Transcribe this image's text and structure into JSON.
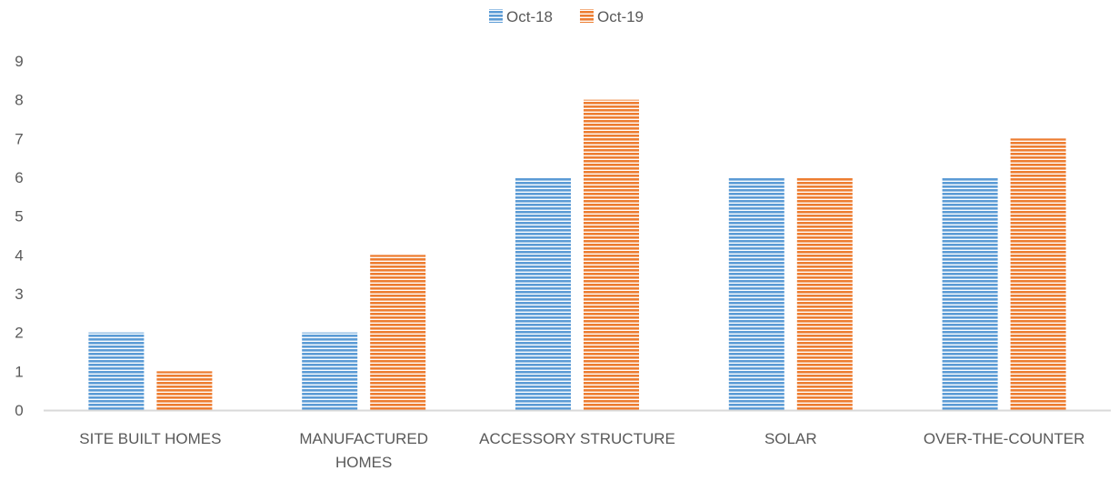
{
  "chart_data": {
    "type": "bar",
    "categories": [
      [
        "SITE BUILT HOMES"
      ],
      [
        "MANUFACTURED",
        "HOMES"
      ],
      [
        "ACCESSORY STRUCTURE"
      ],
      [
        "SOLAR"
      ],
      [
        "OVER-THE-COUNTER"
      ]
    ],
    "series": [
      {
        "name": "Oct-18",
        "values": [
          2,
          2,
          6,
          6,
          6
        ],
        "color": "#5B9BD5"
      },
      {
        "name": "Oct-19",
        "values": [
          1,
          4,
          8,
          6,
          7
        ],
        "color": "#ED7D31"
      }
    ],
    "ylim": [
      0,
      9
    ],
    "yticks": [
      "0",
      "1",
      "2",
      "3",
      "4",
      "5",
      "6",
      "7",
      "8",
      "9"
    ],
    "title": "",
    "xlabel": "",
    "ylabel": "",
    "grid": false,
    "legend_position": "top-center",
    "bar_fill": "horizontal-stripes",
    "axis_color": "#D9D9D9"
  }
}
